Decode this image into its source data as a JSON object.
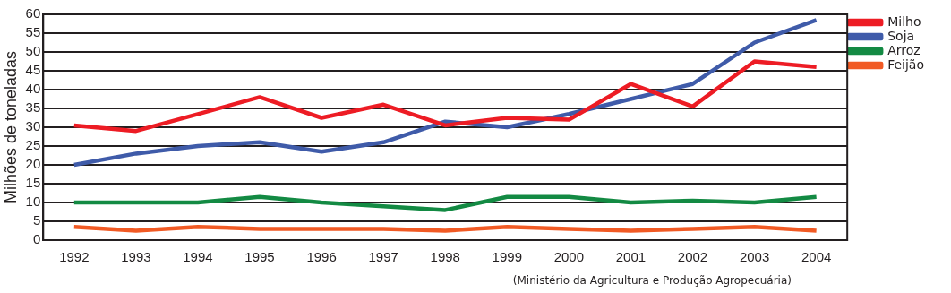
{
  "chart_data": {
    "type": "line",
    "categories": [
      "1992",
      "1993",
      "1994",
      "1995",
      "1996",
      "1997",
      "1998",
      "1999",
      "2000",
      "2001",
      "2002",
      "2003",
      "2004"
    ],
    "series": [
      {
        "name": "Milho",
        "color": "#ed1c24",
        "values": [
          30.5,
          29,
          33.5,
          38,
          32.5,
          36,
          30.5,
          32.5,
          32,
          41.5,
          35.5,
          47.5,
          46
        ]
      },
      {
        "name": "Soja",
        "color": "#3f5ba9",
        "values": [
          20,
          23,
          25,
          26,
          23.5,
          26,
          31.5,
          30,
          33.5,
          37.5,
          41.5,
          52.5,
          58.5
        ]
      },
      {
        "name": "Arroz",
        "color": "#138a43",
        "values": [
          10,
          10,
          10,
          11.5,
          10,
          9,
          8,
          11.5,
          11.5,
          10,
          10.5,
          10,
          11.5
        ]
      },
      {
        "name": "Feijão",
        "color": "#f15a24",
        "values": [
          3.5,
          2.5,
          3.5,
          3,
          3,
          3,
          2.5,
          3.5,
          3,
          2.5,
          3,
          3.5,
          2.5
        ]
      }
    ],
    "ylabel": "Milhões de toneladas",
    "ylim": [
      0,
      60
    ],
    "yticks": [
      0,
      5,
      10,
      15,
      20,
      25,
      30,
      35,
      40,
      45,
      50,
      55,
      60
    ],
    "grid": "y",
    "legend": "top right",
    "marker": "none",
    "line_style": "solid",
    "annotations": [
      "(Ministério da Agricultura e Produção Agropecuária)"
    ]
  }
}
